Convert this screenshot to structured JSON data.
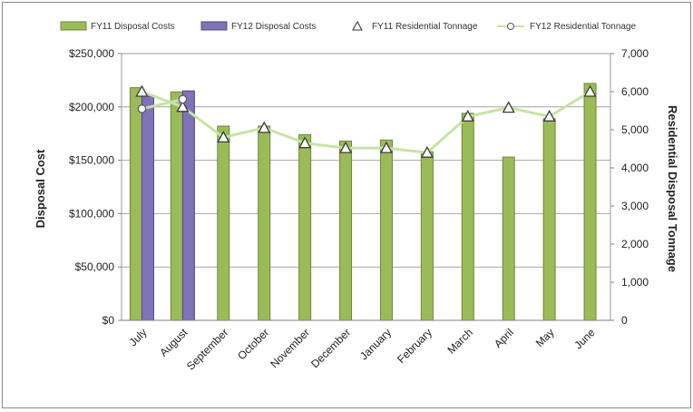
{
  "chart_data": {
    "type": "bar",
    "categories": [
      "July",
      "August",
      "September",
      "October",
      "November",
      "December",
      "January",
      "February",
      "March",
      "April",
      "May",
      "June"
    ],
    "series": [
      {
        "name": "FY11 Disposal Costs",
        "type": "bar",
        "axis": "left",
        "color": "#9bbb59",
        "values": [
          218000,
          214000,
          182000,
          182000,
          174000,
          168000,
          169000,
          158000,
          194000,
          153000,
          189000,
          222000
        ]
      },
      {
        "name": "FY12 Disposal Costs",
        "type": "bar",
        "axis": "left",
        "color": "#7f72b5",
        "values": [
          210000,
          215000,
          null,
          null,
          null,
          null,
          null,
          null,
          null,
          null,
          null,
          null
        ]
      },
      {
        "name": "FY11 Residential Tonnage",
        "type": "line",
        "marker": "triangle",
        "axis": "right",
        "color": "#c7e3a4",
        "values": [
          6000,
          5600,
          4800,
          5050,
          4650,
          4520,
          4520,
          4400,
          5350,
          5580,
          5350,
          6000
        ]
      },
      {
        "name": "FY12 Residential Tonnage",
        "type": "line",
        "marker": "circle",
        "axis": "right",
        "color": "#c7e3a4",
        "values": [
          5550,
          5800,
          null,
          null,
          null,
          null,
          null,
          null,
          null,
          null,
          null,
          null
        ]
      }
    ],
    "ylabel": "Disposal Cost",
    "y2label": "Residential Disposal Tonnage",
    "ylim": [
      0,
      250000
    ],
    "y2lim": [
      0,
      7000
    ],
    "yticks": [
      "$0",
      "$50,000",
      "$100,000",
      "$150,000",
      "$200,000",
      "$250,000"
    ],
    "y2ticks": [
      "0",
      "1,000",
      "2,000",
      "3,000",
      "4,000",
      "5,000",
      "6,000",
      "7,000"
    ],
    "grid": true,
    "legend": "top"
  }
}
